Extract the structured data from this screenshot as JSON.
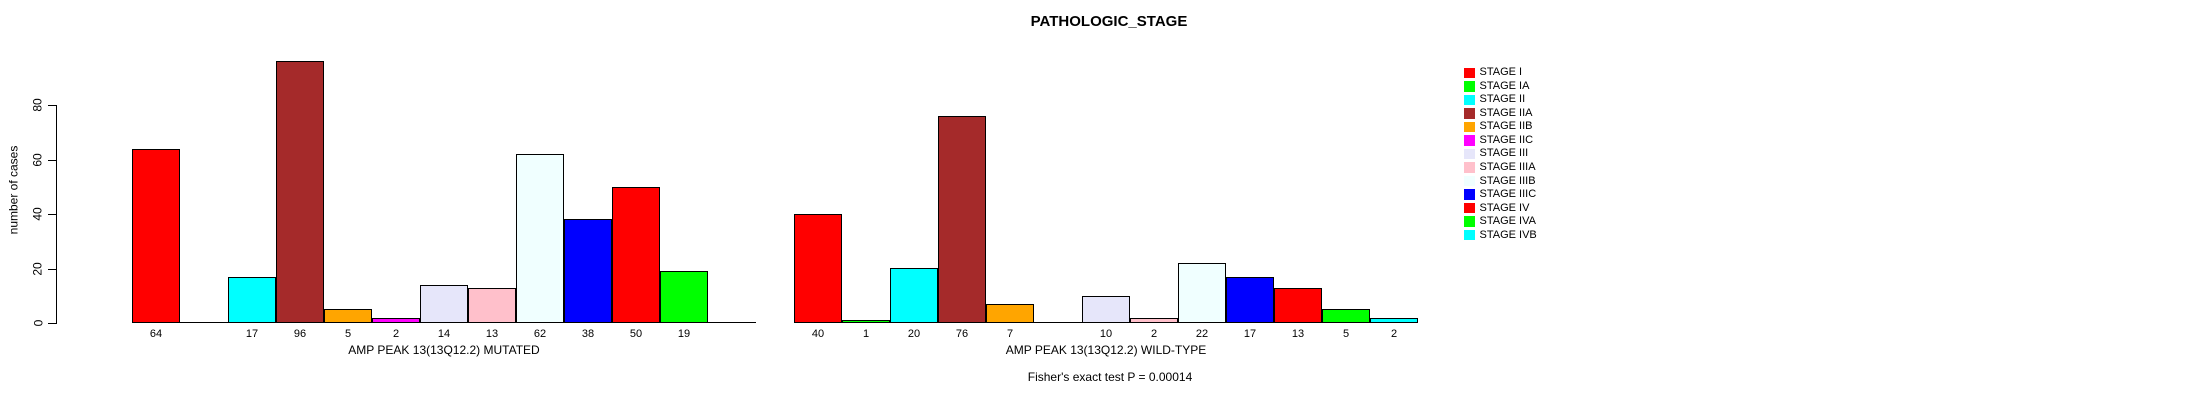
{
  "chart_data": {
    "type": "bar",
    "title": "PATHOLOGIC_STAGE",
    "ylabel": "number of cases",
    "ylim": [
      0,
      80
    ],
    "yticks": [
      0,
      20,
      40,
      60,
      80
    ],
    "grid": false,
    "legend_position": "right",
    "bar_label_rule": "count shown under each bar only when value > 0; zero values drawn as flat baseline segment",
    "categories": [
      "STAGE I",
      "STAGE IA",
      "STAGE II",
      "STAGE IIA",
      "STAGE IIB",
      "STAGE IIC",
      "STAGE III",
      "STAGE IIIA",
      "STAGE IIIB",
      "STAGE IIIC",
      "STAGE IV",
      "STAGE IVA",
      "STAGE IVB"
    ],
    "colors": [
      "#FF0000",
      "#00FF00",
      "#00FFFF",
      "#A52A2A",
      "#FFA500",
      "#FF00FF",
      "#E6E6FA",
      "#FFC0CB",
      "#F0FFFF",
      "#0000FF",
      "#FF0000",
      "#00FF00",
      "#00FFFF"
    ],
    "series": [
      {
        "name": "AMP PEAK 13(13Q12.2) MUTATED",
        "values": [
          64,
          0,
          17,
          96,
          5,
          2,
          14,
          13,
          62,
          38,
          50,
          19,
          0
        ]
      },
      {
        "name": "AMP PEAK 13(13Q12.2) WILD-TYPE",
        "values": [
          40,
          1,
          20,
          76,
          7,
          0,
          10,
          2,
          22,
          17,
          13,
          5,
          2
        ]
      }
    ],
    "annotation": "Fisher's exact test P = 0.00014"
  }
}
